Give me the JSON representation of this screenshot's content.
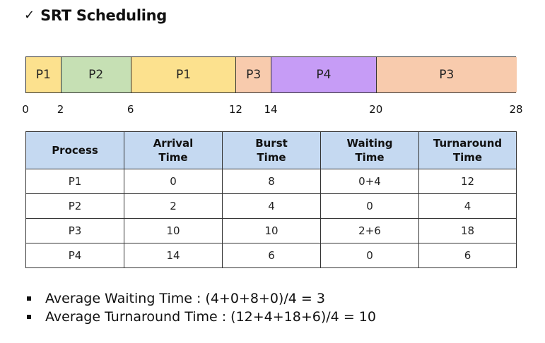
{
  "title": {
    "check": "✓",
    "text": "SRT Scheduling"
  },
  "gantt": {
    "start": 0,
    "end": 28,
    "segments": [
      {
        "label": "P1",
        "start": 0,
        "end": 2,
        "color": "#fce18e"
      },
      {
        "label": "P2",
        "start": 2,
        "end": 6,
        "color": "#c6e0b4"
      },
      {
        "label": "P1",
        "start": 6,
        "end": 12,
        "color": "#fce18e"
      },
      {
        "label": "P3",
        "start": 12,
        "end": 14,
        "color": "#f8cbad"
      },
      {
        "label": "P4",
        "start": 14,
        "end": 20,
        "color": "#c69cf6"
      },
      {
        "label": "P3",
        "start": 20,
        "end": 28,
        "color": "#f8cbad"
      }
    ],
    "ticks": [
      "0",
      "2",
      "6",
      "12",
      "14",
      "20",
      "28"
    ]
  },
  "table": {
    "headers": [
      [
        "Process"
      ],
      [
        "Arrival",
        "Time"
      ],
      [
        "Burst",
        "Time"
      ],
      [
        "Waiting",
        "Time"
      ],
      [
        "Turnaround",
        "Time"
      ]
    ],
    "header_color": "#c5d9f1",
    "rows": [
      [
        "P1",
        "0",
        "8",
        "0+4",
        "12"
      ],
      [
        "P2",
        "2",
        "4",
        "0",
        "4"
      ],
      [
        "P3",
        "10",
        "10",
        "2+6",
        "18"
      ],
      [
        "P4",
        "14",
        "6",
        "0",
        "6"
      ]
    ]
  },
  "averages": [
    "Average Waiting Time : (4+0+8+0)/4 = 3",
    "Average Turnaround Time : (12+4+18+6)/4 = 10"
  ]
}
